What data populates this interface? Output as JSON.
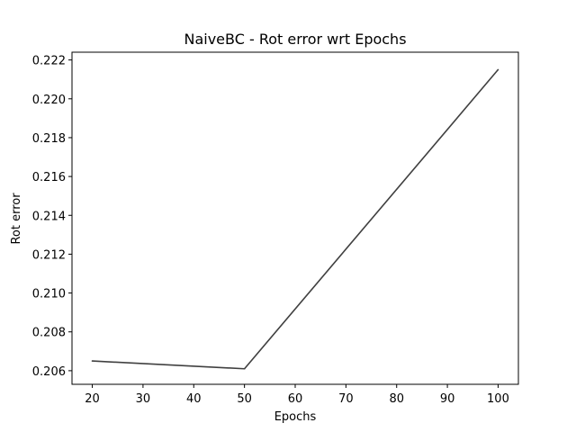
{
  "chart_data": {
    "type": "line",
    "title": "NaiveBC - Rot error wrt Epochs",
    "xlabel": "Epochs",
    "ylabel": "Rot error",
    "xlim": [
      16,
      104
    ],
    "ylim": [
      0.2053,
      0.2224
    ],
    "xticks": [
      20,
      30,
      40,
      50,
      60,
      70,
      80,
      90,
      100
    ],
    "yticks": [
      0.206,
      0.208,
      0.21,
      0.212,
      0.214,
      0.216,
      0.218,
      0.22,
      0.222
    ],
    "ytick_labels": [
      "0.206",
      "0.208",
      "0.210",
      "0.212",
      "0.214",
      "0.216",
      "0.218",
      "0.220",
      "0.222"
    ],
    "grid": false,
    "series": [
      {
        "color": "#404040",
        "x": [
          20,
          50,
          100
        ],
        "y": [
          0.2065,
          0.2061,
          0.2215
        ]
      }
    ]
  }
}
